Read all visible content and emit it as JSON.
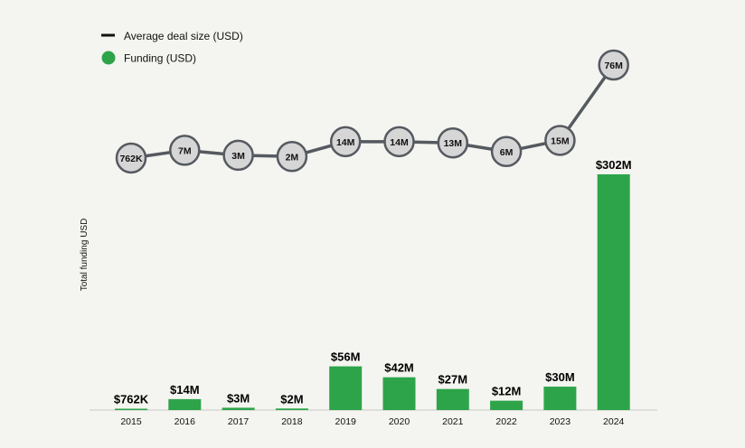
{
  "chart_data": {
    "type": "bar",
    "title": "",
    "xlabel": "",
    "ylabel": "Total funding USD",
    "categories": [
      "2015",
      "2016",
      "2017",
      "2018",
      "2019",
      "2020",
      "2021",
      "2022",
      "2023",
      "2024"
    ],
    "series": [
      {
        "name": "Funding (USD)",
        "type": "bar",
        "color": "#2ea44a",
        "values": [
          0.762,
          14,
          3,
          2,
          56,
          42,
          27,
          12,
          30,
          302
        ],
        "labels": [
          "$762K",
          "$14M",
          "$3M",
          "$2M",
          "$56M",
          "$42M",
          "$27M",
          "$12M",
          "$30M",
          "$302M"
        ]
      },
      {
        "name": "Average deal size (USD)",
        "type": "line",
        "color": "#555a60",
        "values": [
          0.762,
          7,
          3,
          2,
          14,
          14,
          13,
          6,
          15,
          76
        ],
        "labels": [
          "762K",
          "7M",
          "3M",
          "2M",
          "14M",
          "14M",
          "13M",
          "6M",
          "15M",
          "76M"
        ]
      }
    ],
    "unit": "USD millions",
    "grid": false,
    "legend_position": "top-left"
  }
}
